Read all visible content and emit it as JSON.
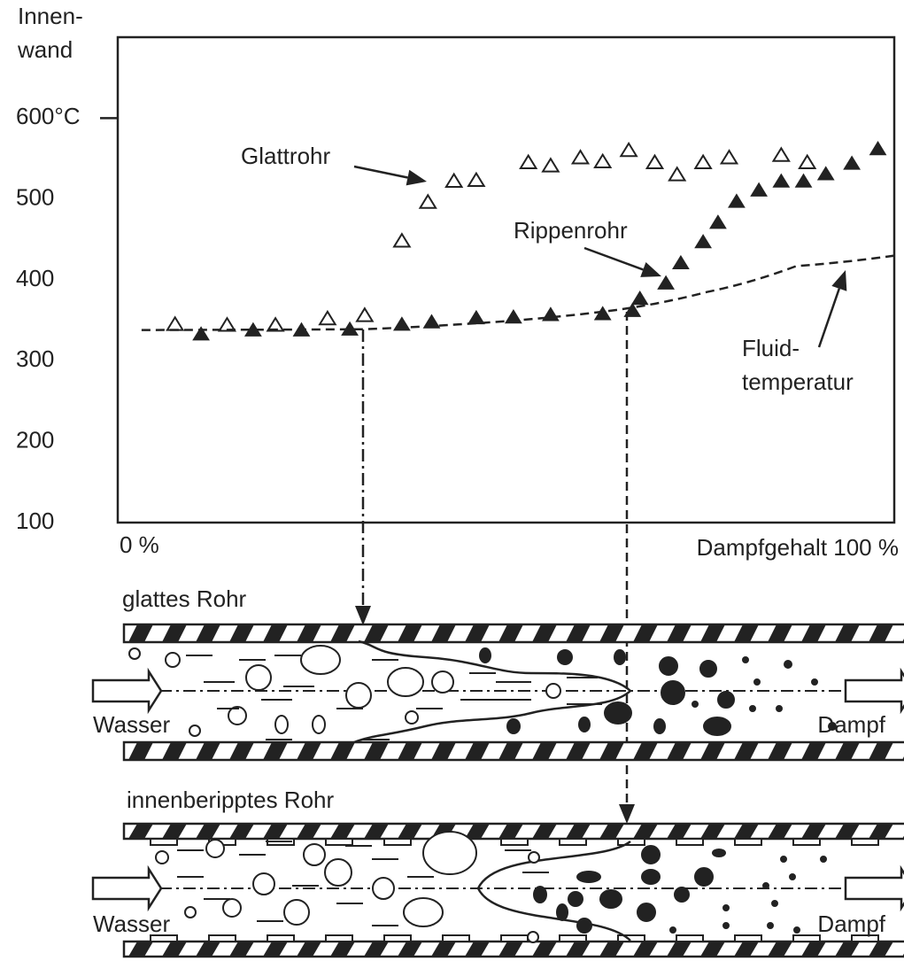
{
  "chart_data": {
    "type": "scatter",
    "y_label": [
      "Innen-",
      "wand"
    ],
    "x_start_label": "0 %",
    "x_label": "Dampfgehalt 100 %",
    "xlim": [
      -3.2,
      101.2
    ],
    "ylim": [
      100,
      700
    ],
    "yticks": [
      {
        "value": 600,
        "label": "600°C"
      },
      500,
      400,
      300,
      200,
      100
    ],
    "series": [
      {
        "name": "Glattrohr",
        "marker": "open-triangle",
        "color": "#222222",
        "x": [
          4.5,
          11.5,
          18,
          25,
          30,
          35,
          38.5,
          42,
          45,
          52,
          55,
          59,
          62,
          65.5,
          69,
          72,
          75.5,
          79,
          86,
          89.5
        ],
        "values": [
          345,
          344,
          344,
          352,
          356,
          448,
          496,
          522,
          523,
          545,
          541,
          551,
          546,
          560,
          545,
          530,
          545,
          551,
          554,
          545
        ]
      },
      {
        "name": "Rippenrohr",
        "marker": "filled-triangle",
        "color": "#222222",
        "x": [
          8,
          15,
          21.5,
          28,
          35,
          39,
          45,
          50,
          55,
          62,
          66,
          67,
          70.5,
          72.5,
          75.5,
          77.5,
          80,
          83,
          86,
          89,
          92,
          95.5,
          99
        ],
        "values": [
          333,
          338,
          338,
          339,
          345,
          348,
          353,
          354,
          357,
          358,
          362,
          377,
          396,
          421,
          447,
          471,
          497,
          511,
          522,
          522,
          531,
          544,
          562
        ]
      },
      {
        "label_lines": [
          "Fluid-",
          "temperatur"
        ],
        "marker": "dashed-line",
        "color": "#222222",
        "x": [
          0,
          30,
          47.5,
          64,
          76,
          88,
          101.2
        ],
        "values": [
          338,
          339,
          348,
          363,
          385,
          417,
          430
        ]
      }
    ]
  },
  "diagrams": [
    {
      "title": "glattes Rohr",
      "inlet": "Wasser",
      "outlet": "Dampf"
    },
    {
      "title": "innenberipptes Rohr",
      "inlet": "Wasser",
      "outlet": "Dampf"
    }
  ]
}
